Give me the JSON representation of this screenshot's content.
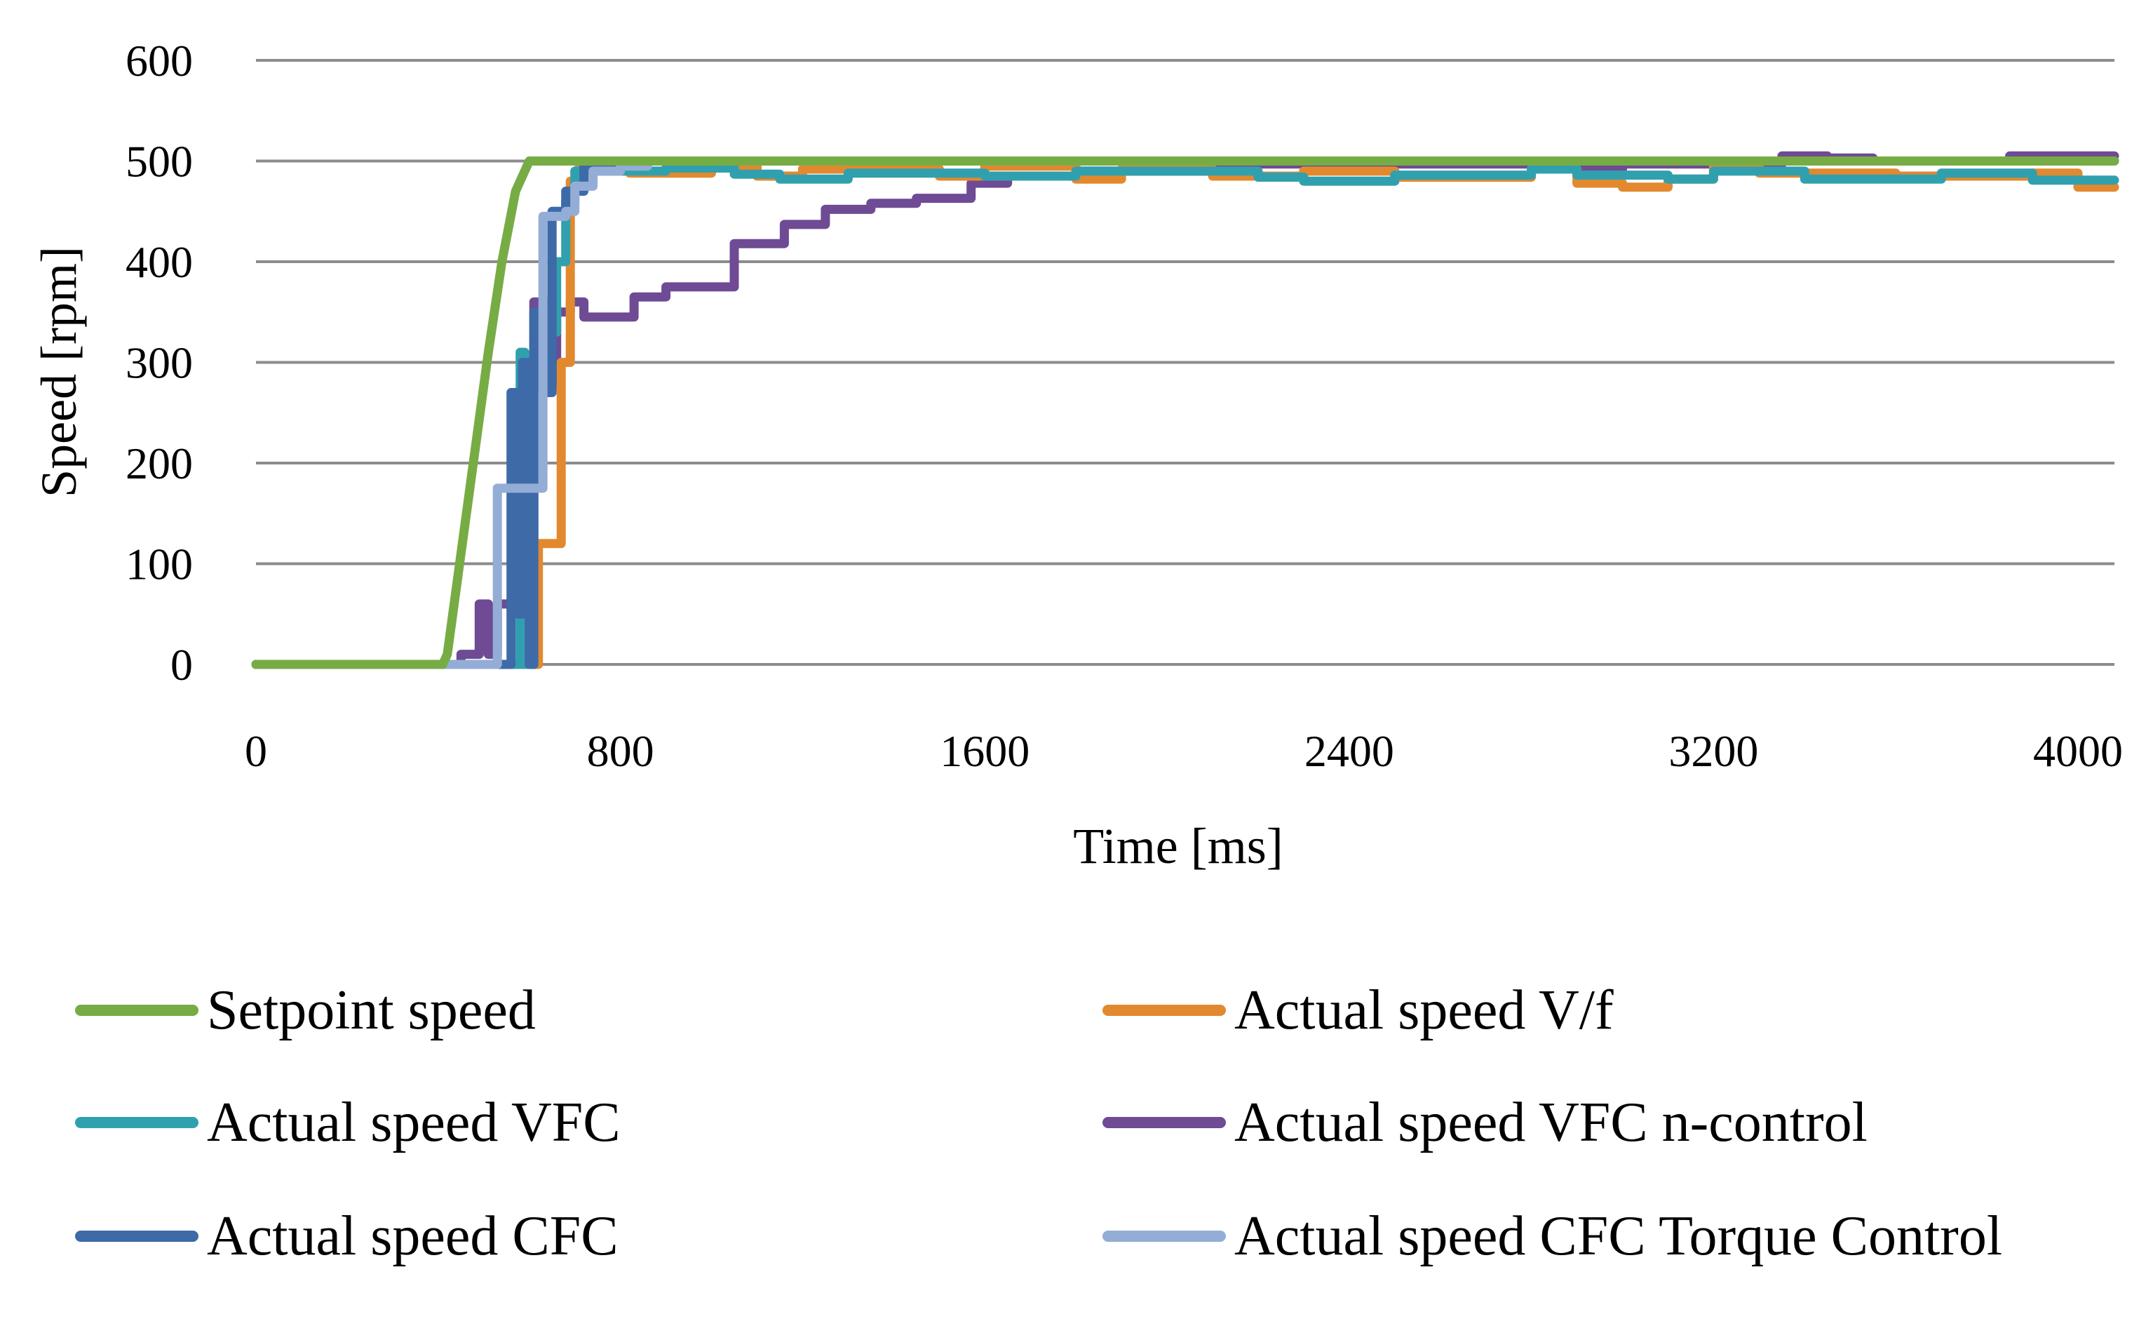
{
  "chart_data": {
    "type": "line",
    "title": "",
    "xlabel": "Time [ms]",
    "ylabel": "Speed [rpm]",
    "xlim": [
      0,
      4080
    ],
    "ylim": [
      0,
      600
    ],
    "x_ticks": [
      0,
      800,
      1600,
      2400,
      3200,
      4000
    ],
    "y_ticks": [
      0,
      100,
      200,
      300,
      400,
      500,
      600
    ],
    "x_tick_labels": [
      "0",
      "800",
      "1600",
      "2400",
      "3200",
      "4000"
    ],
    "y_tick_labels": [
      "0",
      "100",
      "200",
      "300",
      "400",
      "500",
      "600"
    ],
    "grid": "horizontal",
    "legend_position": "bottom",
    "series": [
      {
        "name": "Setpoint speed",
        "color": "#77ac45",
        "points": [
          [
            0,
            0
          ],
          [
            410,
            0
          ],
          [
            420,
            10
          ],
          [
            450,
            110
          ],
          [
            480,
            210
          ],
          [
            510,
            310
          ],
          [
            540,
            400
          ],
          [
            570,
            470
          ],
          [
            600,
            500
          ],
          [
            4080,
            500
          ]
        ]
      },
      {
        "name": "Actual speed V/f",
        "color": "#e2892f",
        "points": [
          [
            0,
            0
          ],
          [
            620,
            0
          ],
          [
            620,
            120
          ],
          [
            670,
            120
          ],
          [
            670,
            300
          ],
          [
            690,
            300
          ],
          [
            690,
            480
          ],
          [
            710,
            480
          ],
          [
            710,
            500
          ],
          [
            800,
            500
          ],
          [
            820,
            488
          ],
          [
            1000,
            488
          ],
          [
            1000,
            495
          ],
          [
            1100,
            495
          ],
          [
            1100,
            485
          ],
          [
            1200,
            485
          ],
          [
            1200,
            492
          ],
          [
            1500,
            492
          ],
          [
            1500,
            485
          ],
          [
            1600,
            485
          ],
          [
            1600,
            495
          ],
          [
            1800,
            495
          ],
          [
            1800,
            482
          ],
          [
            1900,
            482
          ],
          [
            1900,
            492
          ],
          [
            2100,
            492
          ],
          [
            2100,
            485
          ],
          [
            2300,
            485
          ],
          [
            2300,
            490
          ],
          [
            2500,
            490
          ],
          [
            2500,
            484
          ],
          [
            2800,
            484
          ],
          [
            2800,
            492
          ],
          [
            2900,
            492
          ],
          [
            2900,
            478
          ],
          [
            3000,
            478
          ],
          [
            3000,
            474
          ],
          [
            3100,
            474
          ],
          [
            3100,
            482
          ],
          [
            3200,
            482
          ],
          [
            3200,
            495
          ],
          [
            3300,
            495
          ],
          [
            3300,
            488
          ],
          [
            3600,
            488
          ],
          [
            3600,
            485
          ],
          [
            3900,
            485
          ],
          [
            3900,
            488
          ],
          [
            4000,
            488
          ],
          [
            4000,
            474
          ],
          [
            4080,
            474
          ]
        ]
      },
      {
        "name": "Actual speed VFC",
        "color": "#31a0ae",
        "points": [
          [
            0,
            0
          ],
          [
            580,
            0
          ],
          [
            580,
            310
          ],
          [
            590,
            310
          ],
          [
            590,
            0
          ],
          [
            595,
            0
          ],
          [
            595,
            300
          ],
          [
            610,
            300
          ],
          [
            610,
            330
          ],
          [
            660,
            330
          ],
          [
            660,
            400
          ],
          [
            680,
            400
          ],
          [
            680,
            460
          ],
          [
            700,
            460
          ],
          [
            700,
            490
          ],
          [
            900,
            490
          ],
          [
            900,
            493
          ],
          [
            1050,
            493
          ],
          [
            1050,
            487
          ],
          [
            1150,
            487
          ],
          [
            1150,
            482
          ],
          [
            1300,
            482
          ],
          [
            1300,
            488
          ],
          [
            1600,
            488
          ],
          [
            1600,
            485
          ],
          [
            1800,
            485
          ],
          [
            1800,
            490
          ],
          [
            2200,
            490
          ],
          [
            2200,
            484
          ],
          [
            2300,
            484
          ],
          [
            2300,
            480
          ],
          [
            2500,
            480
          ],
          [
            2500,
            486
          ],
          [
            2800,
            486
          ],
          [
            2800,
            492
          ],
          [
            2900,
            492
          ],
          [
            2900,
            486
          ],
          [
            3100,
            486
          ],
          [
            3100,
            482
          ],
          [
            3200,
            482
          ],
          [
            3200,
            490
          ],
          [
            3400,
            490
          ],
          [
            3400,
            482
          ],
          [
            3700,
            482
          ],
          [
            3700,
            488
          ],
          [
            3900,
            488
          ],
          [
            3900,
            481
          ],
          [
            4080,
            481
          ]
        ]
      },
      {
        "name": "Actual speed VFC n-control",
        "color": "#6e4b94",
        "points": [
          [
            0,
            0
          ],
          [
            450,
            0
          ],
          [
            450,
            10
          ],
          [
            490,
            10
          ],
          [
            490,
            60
          ],
          [
            510,
            60
          ],
          [
            510,
            10
          ],
          [
            530,
            10
          ],
          [
            530,
            60
          ],
          [
            610,
            60
          ],
          [
            610,
            360
          ],
          [
            640,
            360
          ],
          [
            640,
            280
          ],
          [
            660,
            280
          ],
          [
            660,
            350
          ],
          [
            690,
            350
          ],
          [
            690,
            360
          ],
          [
            720,
            360
          ],
          [
            720,
            345
          ],
          [
            830,
            345
          ],
          [
            830,
            365
          ],
          [
            900,
            365
          ],
          [
            900,
            375
          ],
          [
            1050,
            375
          ],
          [
            1050,
            418
          ],
          [
            1160,
            418
          ],
          [
            1160,
            437
          ],
          [
            1250,
            437
          ],
          [
            1250,
            452
          ],
          [
            1350,
            452
          ],
          [
            1350,
            458
          ],
          [
            1450,
            458
          ],
          [
            1450,
            463
          ],
          [
            1570,
            463
          ],
          [
            1570,
            478
          ],
          [
            1650,
            478
          ],
          [
            1650,
            485
          ],
          [
            1800,
            485
          ],
          [
            1800,
            490
          ],
          [
            2100,
            490
          ],
          [
            2100,
            497
          ],
          [
            2800,
            497
          ],
          [
            2800,
            492
          ],
          [
            3000,
            492
          ],
          [
            3000,
            497
          ],
          [
            3350,
            497
          ],
          [
            3350,
            505
          ],
          [
            3450,
            505
          ],
          [
            3450,
            503
          ],
          [
            3550,
            503
          ],
          [
            3550,
            500
          ],
          [
            3850,
            500
          ],
          [
            3850,
            505
          ],
          [
            4080,
            505
          ]
        ]
      },
      {
        "name": "Actual speed CFC",
        "color": "#3e6aa8",
        "points": [
          [
            0,
            0
          ],
          [
            560,
            0
          ],
          [
            560,
            270
          ],
          [
            575,
            270
          ],
          [
            575,
            50
          ],
          [
            585,
            50
          ],
          [
            585,
            300
          ],
          [
            600,
            300
          ],
          [
            600,
            0
          ],
          [
            610,
            0
          ],
          [
            610,
            350
          ],
          [
            630,
            350
          ],
          [
            630,
            270
          ],
          [
            650,
            270
          ],
          [
            650,
            450
          ],
          [
            680,
            450
          ],
          [
            680,
            470
          ],
          [
            720,
            470
          ],
          [
            720,
            495
          ],
          [
            800,
            495
          ],
          [
            800,
            500
          ],
          [
            4080,
            500
          ]
        ]
      },
      {
        "name": "Actual speed CFC Torque Control",
        "color": "#94add6",
        "points": [
          [
            0,
            0
          ],
          [
            530,
            0
          ],
          [
            530,
            175
          ],
          [
            630,
            175
          ],
          [
            630,
            445
          ],
          [
            680,
            445
          ],
          [
            680,
            450
          ],
          [
            700,
            450
          ],
          [
            700,
            475
          ],
          [
            740,
            475
          ],
          [
            740,
            490
          ],
          [
            800,
            490
          ],
          [
            800,
            495
          ],
          [
            860,
            495
          ],
          [
            860,
            500
          ],
          [
            4080,
            500
          ]
        ]
      }
    ]
  }
}
